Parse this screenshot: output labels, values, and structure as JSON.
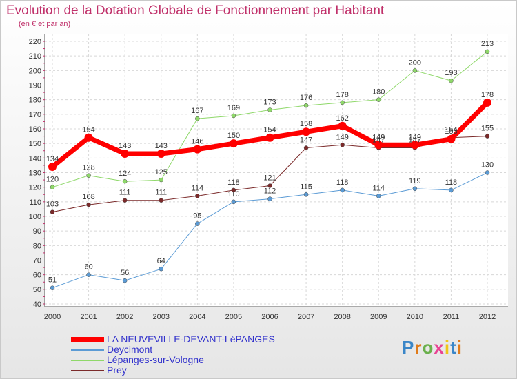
{
  "title": "Evolution de la Dotation Globale de Fonctionnement par Habitant",
  "subtitle": "(en € et par an)",
  "logo": {
    "text": "Proxiti",
    "colors": [
      "#3a86c8",
      "#e07b1a",
      "#6ab04c",
      "#e84393",
      "#f0c419",
      "#3a86c8",
      "#e07b1a"
    ]
  },
  "chart_data": {
    "type": "line",
    "title": "Evolution de la Dotation Globale de Fonctionnement par Habitant",
    "subtitle": "(en € et par an)",
    "x": [
      "2000",
      "2001",
      "2002",
      "2003",
      "2004",
      "2005",
      "2006",
      "2007",
      "2008",
      "2009",
      "2010",
      "2011",
      "2012"
    ],
    "ylim": [
      40,
      220
    ],
    "yticks": [
      40,
      50,
      60,
      70,
      80,
      90,
      100,
      110,
      120,
      130,
      140,
      150,
      160,
      170,
      180,
      190,
      200,
      210,
      220
    ],
    "grid": true,
    "legend_position": "bottom-left",
    "series": [
      {
        "name": "LA NEUVEVILLE-DEVANT-LéPANGES",
        "color": "#ff0000",
        "width": 7,
        "marker": 6,
        "values": [
          134,
          154,
          143,
          143,
          146,
          150,
          154,
          158,
          162,
          149,
          149,
          153,
          178
        ]
      },
      {
        "name": "Deycimont",
        "color": "#5b9bd5",
        "width": 1,
        "marker": 3,
        "values": [
          51,
          60,
          56,
          64,
          95,
          110,
          112,
          115,
          118,
          114,
          119,
          118,
          130
        ]
      },
      {
        "name": "Lépanges-sur-Vologne",
        "color": "#8fd86a",
        "width": 1,
        "marker": 3,
        "values": [
          120,
          128,
          124,
          125,
          167,
          169,
          173,
          176,
          178,
          180,
          200,
          193,
          213
        ]
      },
      {
        "name": "Prey",
        "color": "#7b2a2a",
        "width": 1,
        "marker": 3,
        "values": [
          103,
          108,
          111,
          111,
          114,
          118,
          121,
          147,
          149,
          147,
          147,
          154,
          155
        ]
      }
    ]
  }
}
